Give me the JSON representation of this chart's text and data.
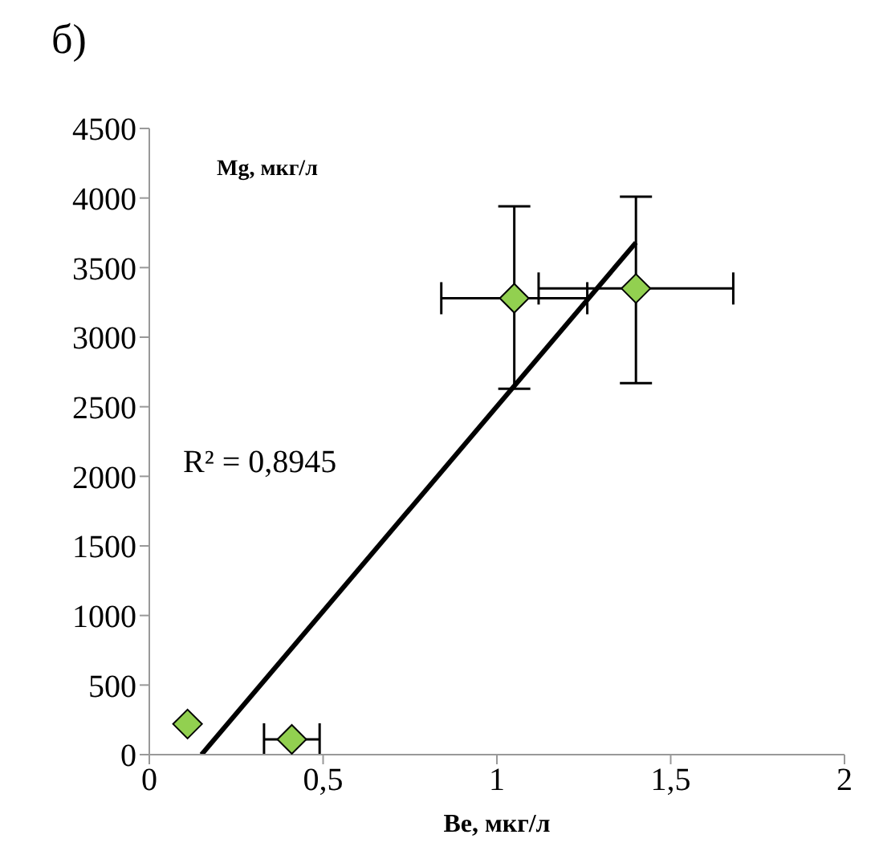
{
  "chart_data": {
    "type": "scatter",
    "title": "б)",
    "xlabel": "Be, мкг/л",
    "ylabel": "Mg, мкг/л",
    "x": [
      0.11,
      0.41,
      1.05,
      1.4
    ],
    "series": [
      {
        "color": "#92d050",
        "values": [
          220,
          110,
          3280,
          3350
        ],
        "errors": [
          null,
          null,
          [
            2630,
            3940
          ],
          [
            2670,
            4010
          ]
        ],
        "xerrors": [
          null,
          [
            0.33,
            0.49
          ],
          [
            0.84,
            1.26
          ],
          [
            1.12,
            1.68
          ]
        ]
      },
      {
        "type": "line",
        "color": "#000000",
        "marker": "none",
        "x": [
          0.15,
          1.4
        ],
        "values": [
          0,
          3680
        ]
      }
    ],
    "annotations": [
      "R² = 0,8945"
    ],
    "marker": "diamond",
    "grid": false,
    "legend": false,
    "xlim": [
      0,
      2
    ],
    "xticks": [
      0,
      {
        "value": 0.5,
        "label": "0,5"
      },
      1,
      {
        "value": 1.5,
        "label": "1,5"
      },
      2
    ],
    "ylim": [
      0,
      4500
    ],
    "yticks": [
      0,
      500,
      1000,
      1500,
      2000,
      2500,
      3000,
      3500,
      4000,
      4500
    ]
  }
}
